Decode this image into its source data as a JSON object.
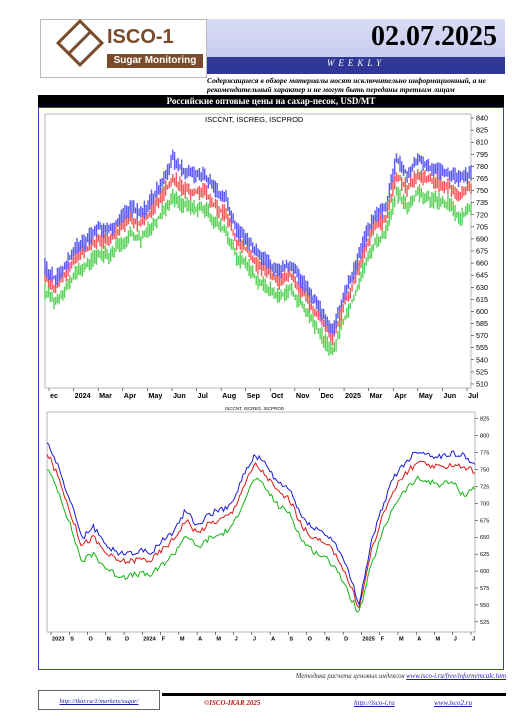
{
  "header": {
    "logo_title": "ISCO-1",
    "logo_subtitle": "Sugar Monitoring",
    "date": "02.07.2025",
    "edition": "WEEKLY",
    "disclaimer": "Содержащиеся в обзоре материалы носят исключительно информационный, а не рекомендательный характер и не могут быть переданы третьим лицам",
    "section_title": "Российские оптовые цены на сахар-песок, USD/MT"
  },
  "colors": {
    "brand": "#7a4b2b",
    "band": "#2f3896",
    "cnt": "#5a5af0",
    "reg": "#f05a5a",
    "prod": "#5ad25a"
  },
  "chart_data": [
    {
      "type": "line",
      "title": "ISCCNT, ISCREG, ISCPROD",
      "series": [
        {
          "name": "ISCCNT"
        },
        {
          "name": "ISCREG"
        },
        {
          "name": "ISCPROD"
        }
      ],
      "x_labels": [
        "ec",
        "2024",
        "Mar",
        "Apr",
        "May",
        "Jun",
        "Jul",
        "Aug",
        "Sep",
        "Oct",
        "Nov",
        "Dec",
        "2025",
        "Mar",
        "Apr",
        "May",
        "Jun",
        "Jul"
      ],
      "y_ticks": [
        510,
        525,
        540,
        555,
        570,
        585,
        600,
        615,
        630,
        645,
        660,
        675,
        690,
        705,
        720,
        735,
        750,
        765,
        780,
        795,
        810,
        825,
        840
      ],
      "ylim": [
        505,
        845
      ],
      "values": {
        "cnt": [
          655,
          640,
          660,
          680,
          690,
          705,
          700,
          715,
          730,
          720,
          740,
          760,
          790,
          775,
          770,
          770,
          750,
          740,
          700,
          690,
          670,
          660,
          650,
          660,
          640,
          620,
          600,
          575,
          620,
          650,
          690,
          720,
          730,
          790,
          770,
          790,
          780,
          775,
          770,
          765,
          770
        ],
        "reg": [
          642,
          628,
          648,
          668,
          678,
          690,
          688,
          702,
          716,
          708,
          725,
          745,
          765,
          752,
          748,
          748,
          730,
          720,
          686,
          676,
          658,
          648,
          638,
          648,
          628,
          608,
          588,
          565,
          606,
          636,
          676,
          706,
          716,
          770,
          752,
          770,
          765,
          760,
          755,
          745,
          755
        ],
        "prod": [
          625,
          612,
          630,
          648,
          658,
          672,
          670,
          682,
          696,
          690,
          705,
          722,
          742,
          732,
          728,
          728,
          710,
          700,
          668,
          658,
          638,
          628,
          618,
          628,
          610,
          590,
          570,
          548,
          588,
          618,
          656,
          686,
          696,
          746,
          730,
          748,
          740,
          738,
          732,
          715,
          730
        ]
      }
    },
    {
      "type": "line",
      "title": "ISCCNT, ISCREG, ISCPROD",
      "series": [
        {
          "name": "ISCCNT"
        },
        {
          "name": "ISCREG"
        },
        {
          "name": "ISCPROD"
        }
      ],
      "x_labels": [
        "2023",
        "S",
        "O",
        "N",
        "D",
        "2024",
        "F",
        "M",
        "A",
        "M",
        "J",
        "J",
        "A",
        "S",
        "O",
        "N",
        "D",
        "2025",
        "F",
        "M",
        "A",
        "M",
        "J",
        "J"
      ],
      "y_ticks": [
        525,
        550,
        575,
        600,
        625,
        650,
        675,
        700,
        725,
        750,
        775,
        800,
        825
      ],
      "ylim": [
        510,
        835
      ],
      "values": {
        "cnt": [
          792,
          752,
          705,
          648,
          665,
          640,
          628,
          626,
          630,
          628,
          645,
          660,
          690,
          668,
          684,
          690,
          700,
          742,
          772,
          755,
          730,
          720,
          680,
          665,
          655,
          640,
          600,
          552,
          640,
          695,
          740,
          760,
          778,
          772,
          768,
          775,
          770,
          760
        ],
        "reg": [
          775,
          738,
          688,
          638,
          650,
          628,
          616,
          614,
          618,
          616,
          632,
          648,
          676,
          656,
          670,
          676,
          686,
          726,
          758,
          740,
          716,
          706,
          666,
          650,
          640,
          626,
          588,
          545,
          628,
          680,
          722,
          744,
          760,
          756,
          752,
          758,
          754,
          748
        ],
        "prod": [
          752,
          718,
          668,
          614,
          626,
          606,
          594,
          592,
          596,
          594,
          610,
          626,
          654,
          634,
          648,
          654,
          664,
          704,
          738,
          720,
          696,
          686,
          646,
          630,
          620,
          606,
          568,
          538,
          606,
          656,
          698,
          720,
          736,
          732,
          728,
          732,
          712,
          724
        ]
      }
    }
  ],
  "footer": {
    "method_note": "Методика расчета ценовых индексов",
    "method_link": "www.isco-i.ru/free/inform/mcalc.htm",
    "left_link": "http://ikar.ru/1/markets/sugar/",
    "copyright": "©ISCO-IKAR 2025",
    "link1": "http://isco-i.ru",
    "link2": "www.isco2.ru"
  }
}
